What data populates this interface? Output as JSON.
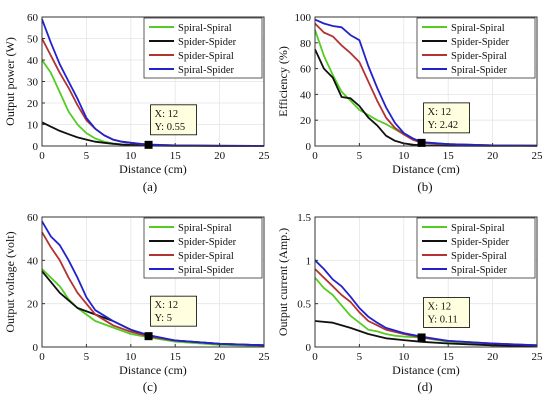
{
  "colors": {
    "series": [
      "#55cc22",
      "#111111",
      "#b33333",
      "#2222cc"
    ],
    "axis": "#333333",
    "grid": "#e5e5e5"
  },
  "chart_data": [
    {
      "type": "line",
      "panel_label": "(a)",
      "xlabel": "Distance (cm)",
      "ylabel": "Output power (W)",
      "xlim": [
        0,
        25
      ],
      "ylim": [
        0,
        60
      ],
      "xticks": [
        "0",
        "5",
        "10",
        "15",
        "20",
        "25"
      ],
      "yticks": [
        "0",
        "10",
        "20",
        "30",
        "40",
        "50",
        "60"
      ],
      "legend_position": "top-right",
      "datatip": {
        "x": 12,
        "y": 0.55,
        "x_text": "X: 12",
        "y_text": "Y: 0.55"
      },
      "series": [
        {
          "name": "Spiral-Spiral",
          "points": [
            [
              0,
              40
            ],
            [
              1,
              34
            ],
            [
              2,
              25
            ],
            [
              3,
              16
            ],
            [
              4,
              10
            ],
            [
              5,
              6
            ],
            [
              6,
              3.5
            ],
            [
              7,
              2
            ],
            [
              8,
              1.2
            ],
            [
              9,
              0.7
            ],
            [
              10,
              0.5
            ],
            [
              11,
              0.4
            ],
            [
              12,
              0.3
            ],
            [
              15,
              0.2
            ],
            [
              20,
              0.1
            ],
            [
              25,
              0.05
            ]
          ]
        },
        {
          "name": "Spider-Spider",
          "points": [
            [
              0,
              11
            ],
            [
              1,
              9
            ],
            [
              2,
              7
            ],
            [
              3,
              5.5
            ],
            [
              4,
              4
            ],
            [
              5,
              3
            ],
            [
              6,
              2
            ],
            [
              7,
              1.5
            ],
            [
              8,
              1
            ],
            [
              9,
              0.7
            ],
            [
              10,
              0.5
            ],
            [
              11,
              0.3
            ],
            [
              12,
              0.2
            ],
            [
              15,
              0.1
            ],
            [
              20,
              0.05
            ],
            [
              25,
              0.05
            ]
          ]
        },
        {
          "name": "Spider-Spiral",
          "points": [
            [
              0,
              50
            ],
            [
              1,
              42
            ],
            [
              2,
              34
            ],
            [
              3,
              27
            ],
            [
              4,
              19
            ],
            [
              5,
              12
            ],
            [
              6,
              8
            ],
            [
              7,
              5
            ],
            [
              8,
              3
            ],
            [
              9,
              2
            ],
            [
              10,
              1.5
            ],
            [
              11,
              1
            ],
            [
              12,
              0.55
            ],
            [
              15,
              0.3
            ],
            [
              20,
              0.1
            ],
            [
              25,
              0.05
            ]
          ]
        },
        {
          "name": "Spiral-Spider",
          "points": [
            [
              0,
              59
            ],
            [
              1,
              48
            ],
            [
              2,
              38
            ],
            [
              3,
              30
            ],
            [
              4,
              22
            ],
            [
              5,
              13
            ],
            [
              6,
              8
            ],
            [
              7,
              5
            ],
            [
              8,
              3
            ],
            [
              9,
              2
            ],
            [
              10,
              1.5
            ],
            [
              11,
              1
            ],
            [
              12,
              0.7
            ],
            [
              15,
              0.3
            ],
            [
              20,
              0.1
            ],
            [
              25,
              0.05
            ]
          ]
        }
      ]
    },
    {
      "type": "line",
      "panel_label": "(b)",
      "xlabel": "Distance (cm)",
      "ylabel": "Efficiency (%)",
      "xlim": [
        0,
        25
      ],
      "ylim": [
        0,
        100
      ],
      "xticks": [
        "0",
        "5",
        "10",
        "15",
        "20",
        "25"
      ],
      "yticks": [
        "0",
        "20",
        "40",
        "60",
        "80",
        "100"
      ],
      "legend_position": "top-right",
      "datatip": {
        "x": 12,
        "y": 2.42,
        "x_text": "X: 12",
        "y_text": "Y: 2.42"
      },
      "series": [
        {
          "name": "Spiral-Spiral",
          "points": [
            [
              0,
              90
            ],
            [
              1,
              70
            ],
            [
              2,
              55
            ],
            [
              3,
              42
            ],
            [
              4,
              35
            ],
            [
              5,
              28
            ],
            [
              6,
              24
            ],
            [
              7,
              20
            ],
            [
              8,
              17
            ],
            [
              9,
              13
            ],
            [
              10,
              9
            ],
            [
              11,
              5
            ],
            [
              12,
              3
            ],
            [
              15,
              1.5
            ],
            [
              20,
              0.5
            ],
            [
              25,
              0.2
            ]
          ]
        },
        {
          "name": "Spider-Spider",
          "points": [
            [
              0,
              75
            ],
            [
              1,
              60
            ],
            [
              2,
              53
            ],
            [
              3,
              38
            ],
            [
              4,
              37
            ],
            [
              5,
              31
            ],
            [
              6,
              22
            ],
            [
              7,
              16
            ],
            [
              8,
              8
            ],
            [
              9,
              4
            ],
            [
              10,
              2
            ],
            [
              11,
              1
            ],
            [
              12,
              0.5
            ],
            [
              15,
              0.2
            ],
            [
              20,
              0.1
            ],
            [
              25,
              0.1
            ]
          ]
        },
        {
          "name": "Spider-Spiral",
          "points": [
            [
              0,
              95
            ],
            [
              1,
              88
            ],
            [
              2,
              85
            ],
            [
              3,
              78
            ],
            [
              4,
              72
            ],
            [
              5,
              65
            ],
            [
              6,
              50
            ],
            [
              7,
              35
            ],
            [
              8,
              22
            ],
            [
              9,
              14
            ],
            [
              10,
              9
            ],
            [
              11,
              5
            ],
            [
              12,
              2.42
            ],
            [
              15,
              1.5
            ],
            [
              20,
              0.5
            ],
            [
              25,
              0.2
            ]
          ]
        },
        {
          "name": "Spiral-Spider",
          "points": [
            [
              0,
              98
            ],
            [
              1,
              95
            ],
            [
              2,
              93
            ],
            [
              3,
              92
            ],
            [
              4,
              86
            ],
            [
              5,
              82
            ],
            [
              6,
              62
            ],
            [
              7,
              45
            ],
            [
              8,
              30
            ],
            [
              9,
              18
            ],
            [
              10,
              10
            ],
            [
              11,
              6
            ],
            [
              12,
              3
            ],
            [
              15,
              1.5
            ],
            [
              20,
              0.5
            ],
            [
              25,
              0.2
            ]
          ]
        }
      ]
    },
    {
      "type": "line",
      "panel_label": "(c)",
      "xlabel": "Distance (cm)",
      "ylabel": "Output voltage (volt)",
      "xlim": [
        0,
        25
      ],
      "ylim": [
        0,
        60
      ],
      "xticks": [
        "0",
        "5",
        "10",
        "15",
        "20",
        "25"
      ],
      "yticks": [
        "0",
        "20",
        "40",
        "60"
      ],
      "legend_position": "top-right",
      "datatip": {
        "x": 12,
        "y": 5,
        "x_text": "X: 12",
        "y_text": "Y: 5"
      },
      "series": [
        {
          "name": "Spiral-Spiral",
          "points": [
            [
              0,
              36
            ],
            [
              2,
              28
            ],
            [
              3,
              22
            ],
            [
              4,
              18
            ],
            [
              6,
              12
            ],
            [
              8,
              9
            ],
            [
              10,
              6
            ],
            [
              12,
              4.5
            ],
            [
              15,
              2.5
            ],
            [
              20,
              1
            ],
            [
              25,
              0.5
            ]
          ]
        },
        {
          "name": "Spider-Spider",
          "points": [
            [
              0,
              35
            ],
            [
              2,
              25
            ],
            [
              4,
              18
            ],
            [
              6,
              15
            ],
            [
              8,
              12
            ],
            [
              10,
              8
            ],
            [
              12,
              5
            ],
            [
              15,
              3
            ],
            [
              20,
              1.5
            ],
            [
              25,
              0.8
            ]
          ]
        },
        {
          "name": "Spider-Spiral",
          "points": [
            [
              0,
              53
            ],
            [
              1,
              46
            ],
            [
              2,
              40
            ],
            [
              3,
              32
            ],
            [
              4,
              25
            ],
            [
              5,
              20
            ],
            [
              6,
              15
            ],
            [
              8,
              10
            ],
            [
              10,
              7
            ],
            [
              12,
              5
            ],
            [
              15,
              3
            ],
            [
              20,
              1.5
            ],
            [
              25,
              0.8
            ]
          ]
        },
        {
          "name": "Spiral-Spider",
          "points": [
            [
              0,
              58
            ],
            [
              1,
              51
            ],
            [
              2,
              47
            ],
            [
              3,
              40
            ],
            [
              4,
              32
            ],
            [
              5,
              23
            ],
            [
              6,
              17
            ],
            [
              8,
              12
            ],
            [
              10,
              8
            ],
            [
              12,
              5.5
            ],
            [
              15,
              3
            ],
            [
              20,
              1.5
            ],
            [
              25,
              0.8
            ]
          ]
        }
      ]
    },
    {
      "type": "line",
      "panel_label": "(d)",
      "xlabel": "Distance (cm)",
      "ylabel": "Output current (Amp.)",
      "xlim": [
        0,
        25
      ],
      "ylim": [
        0,
        1.5
      ],
      "xticks": [
        "0",
        "5",
        "10",
        "15",
        "20",
        "25"
      ],
      "yticks": [
        "0",
        "0.5",
        "1",
        "1.5"
      ],
      "legend_position": "top-right",
      "datatip": {
        "x": 12,
        "y": 0.11,
        "x_text": "X: 12",
        "y_text": "Y: 0.11"
      },
      "series": [
        {
          "name": "Spiral-Spiral",
          "points": [
            [
              0,
              0.8
            ],
            [
              1,
              0.68
            ],
            [
              2,
              0.6
            ],
            [
              3,
              0.48
            ],
            [
              4,
              0.36
            ],
            [
              5,
              0.28
            ],
            [
              6,
              0.2
            ],
            [
              7,
              0.18
            ],
            [
              8,
              0.15
            ],
            [
              9,
              0.13
            ],
            [
              10,
              0.12
            ],
            [
              12,
              0.11
            ],
            [
              15,
              0.06
            ],
            [
              20,
              0.03
            ],
            [
              25,
              0.02
            ]
          ]
        },
        {
          "name": "Spider-Spider",
          "points": [
            [
              0,
              0.3
            ],
            [
              2,
              0.28
            ],
            [
              4,
              0.22
            ],
            [
              6,
              0.15
            ],
            [
              8,
              0.1
            ],
            [
              10,
              0.08
            ],
            [
              12,
              0.06
            ],
            [
              15,
              0.04
            ],
            [
              20,
              0.02
            ],
            [
              25,
              0.01
            ]
          ]
        },
        {
          "name": "Spider-Spiral",
          "points": [
            [
              0,
              0.9
            ],
            [
              1,
              0.8
            ],
            [
              2,
              0.7
            ],
            [
              3,
              0.6
            ],
            [
              4,
              0.52
            ],
            [
              5,
              0.4
            ],
            [
              6,
              0.3
            ],
            [
              7,
              0.25
            ],
            [
              8,
              0.2
            ],
            [
              10,
              0.15
            ],
            [
              12,
              0.11
            ],
            [
              15,
              0.07
            ],
            [
              20,
              0.04
            ],
            [
              25,
              0.02
            ]
          ]
        },
        {
          "name": "Spiral-Spider",
          "points": [
            [
              0,
              1.0
            ],
            [
              1,
              0.9
            ],
            [
              2,
              0.78
            ],
            [
              3,
              0.7
            ],
            [
              4,
              0.58
            ],
            [
              5,
              0.45
            ],
            [
              6,
              0.35
            ],
            [
              7,
              0.28
            ],
            [
              8,
              0.22
            ],
            [
              10,
              0.16
            ],
            [
              12,
              0.12
            ],
            [
              15,
              0.07
            ],
            [
              20,
              0.04
            ],
            [
              25,
              0.02
            ]
          ]
        }
      ]
    }
  ]
}
